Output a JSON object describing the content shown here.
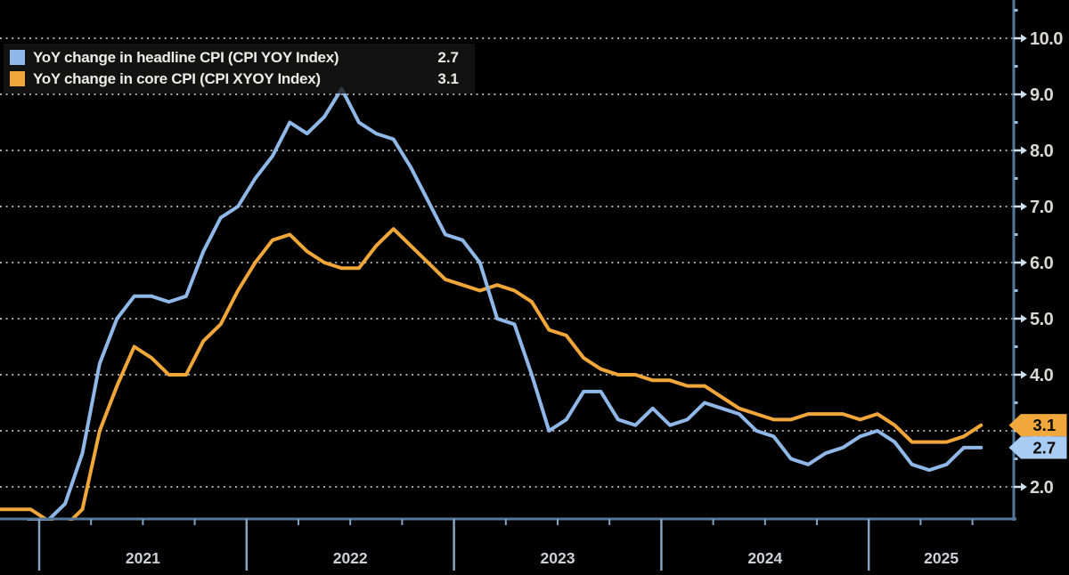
{
  "chart_data": {
    "type": "line",
    "title": "",
    "x_months": [
      "2020-10",
      "2020-11",
      "2020-12",
      "2021-01",
      "2021-02",
      "2021-03",
      "2021-04",
      "2021-05",
      "2021-06",
      "2021-07",
      "2021-08",
      "2021-09",
      "2021-10",
      "2021-11",
      "2021-12",
      "2022-01",
      "2022-02",
      "2022-03",
      "2022-04",
      "2022-05",
      "2022-06",
      "2022-07",
      "2022-08",
      "2022-09",
      "2022-10",
      "2022-11",
      "2022-12",
      "2023-01",
      "2023-02",
      "2023-03",
      "2023-04",
      "2023-05",
      "2023-06",
      "2023-07",
      "2023-08",
      "2023-09",
      "2023-10",
      "2023-11",
      "2023-12",
      "2024-01",
      "2024-02",
      "2024-03",
      "2024-04",
      "2024-05",
      "2024-06",
      "2024-07",
      "2024-08",
      "2024-09",
      "2024-10",
      "2024-11",
      "2024-12",
      "2025-01",
      "2025-02",
      "2025-03",
      "2025-04",
      "2025-05",
      "2025-06",
      "2025-07"
    ],
    "series": [
      {
        "name": "YoY change in headline CPI (CPI YOY Index)",
        "slug": "headline-cpi",
        "color": "#8fb8e8",
        "badge_color": "#a9cdf2",
        "last_value_label": "2.7",
        "values": [
          1.2,
          1.2,
          1.4,
          1.4,
          1.7,
          2.6,
          4.2,
          5.0,
          5.4,
          5.4,
          5.3,
          5.4,
          6.2,
          6.8,
          7.0,
          7.5,
          7.9,
          8.5,
          8.3,
          8.6,
          9.1,
          8.5,
          8.3,
          8.2,
          7.7,
          7.1,
          6.5,
          6.4,
          6.0,
          5.0,
          4.9,
          4.0,
          3.0,
          3.2,
          3.7,
          3.7,
          3.2,
          3.1,
          3.4,
          3.1,
          3.2,
          3.5,
          3.4,
          3.3,
          3.0,
          2.9,
          2.5,
          2.4,
          2.6,
          2.7,
          2.9,
          3.0,
          2.8,
          2.4,
          2.3,
          2.4,
          2.7,
          2.7
        ]
      },
      {
        "name": "YoY change in core CPI (CPI XYOY Index)",
        "slug": "core-cpi",
        "color": "#f1a63a",
        "badge_color": "#f0a83c",
        "last_value_label": "3.1",
        "values": [
          1.6,
          1.6,
          1.6,
          1.4,
          1.3,
          1.6,
          3.0,
          3.8,
          4.5,
          4.3,
          4.0,
          4.0,
          4.6,
          4.9,
          5.5,
          6.0,
          6.4,
          6.5,
          6.2,
          6.0,
          5.9,
          5.9,
          6.3,
          6.6,
          6.3,
          6.0,
          5.7,
          5.6,
          5.5,
          5.6,
          5.5,
          5.3,
          4.8,
          4.7,
          4.3,
          4.1,
          4.0,
          4.0,
          3.9,
          3.9,
          3.8,
          3.8,
          3.6,
          3.4,
          3.3,
          3.2,
          3.2,
          3.3,
          3.3,
          3.3,
          3.2,
          3.3,
          3.1,
          2.8,
          2.8,
          2.8,
          2.9,
          3.1
        ]
      }
    ],
    "y_axis": {
      "side": "right",
      "ticks": [
        10,
        9,
        8,
        7,
        6,
        5,
        4,
        3,
        2
      ],
      "tick_labels": [
        "10.0",
        "9.0",
        "8.0",
        "7.0",
        "6.0",
        "5.0",
        "4.0",
        "3.0",
        "2.0"
      ],
      "minor_ticks": [
        10.5,
        9.5,
        8.5,
        7.5,
        6.5,
        5.5,
        4.5,
        3.5,
        2.5
      ],
      "ylim": [
        1.43,
        10.46
      ],
      "gridlines": "dotted horizontal"
    },
    "x_axis": {
      "year_labels": [
        "2021",
        "2022",
        "2023",
        "2024",
        "2025"
      ],
      "minor_tick_unit": "quarter"
    },
    "legend_position": "top-left"
  }
}
